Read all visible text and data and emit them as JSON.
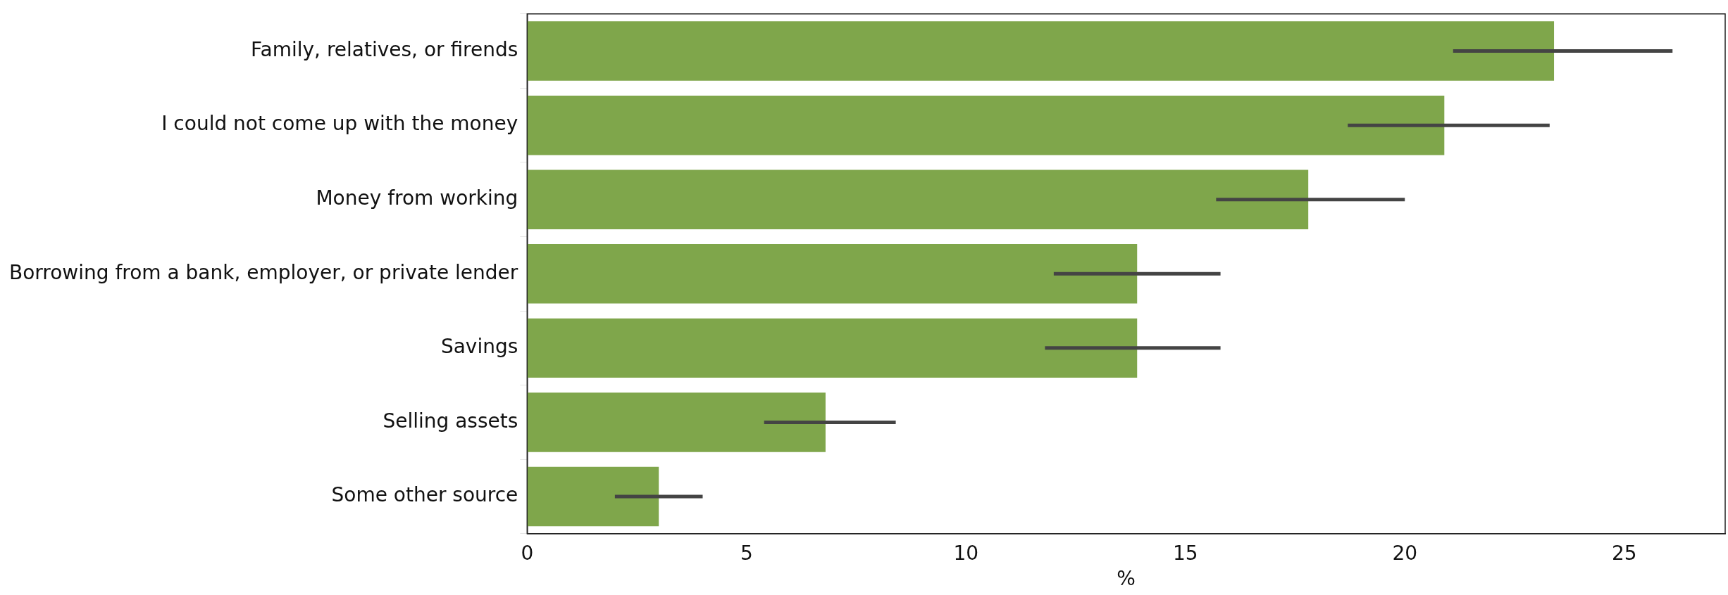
{
  "chart_data": {
    "type": "bar",
    "orientation": "horizontal",
    "xlabel": "%",
    "categories": [
      "Family, relatives, or firends",
      "I could not come up with the money",
      "Money from working",
      "Borrowing from a bank, employer, or private lender",
      "Savings",
      "Selling assets",
      "Some other source"
    ],
    "values": [
      23.4,
      20.9,
      17.8,
      13.9,
      13.9,
      6.8,
      3.0
    ],
    "errors": [
      [
        21.1,
        26.1
      ],
      [
        18.7,
        23.3
      ],
      [
        15.7,
        20.0
      ],
      [
        12.0,
        15.8
      ],
      [
        11.8,
        15.8
      ],
      [
        5.4,
        8.4
      ],
      [
        2.0,
        4.0
      ]
    ],
    "color": "#7fa64b",
    "xlim": [
      0,
      27.3
    ],
    "xticks": [
      0,
      5,
      10,
      15,
      20,
      25
    ],
    "grid": false,
    "legend": false
  }
}
